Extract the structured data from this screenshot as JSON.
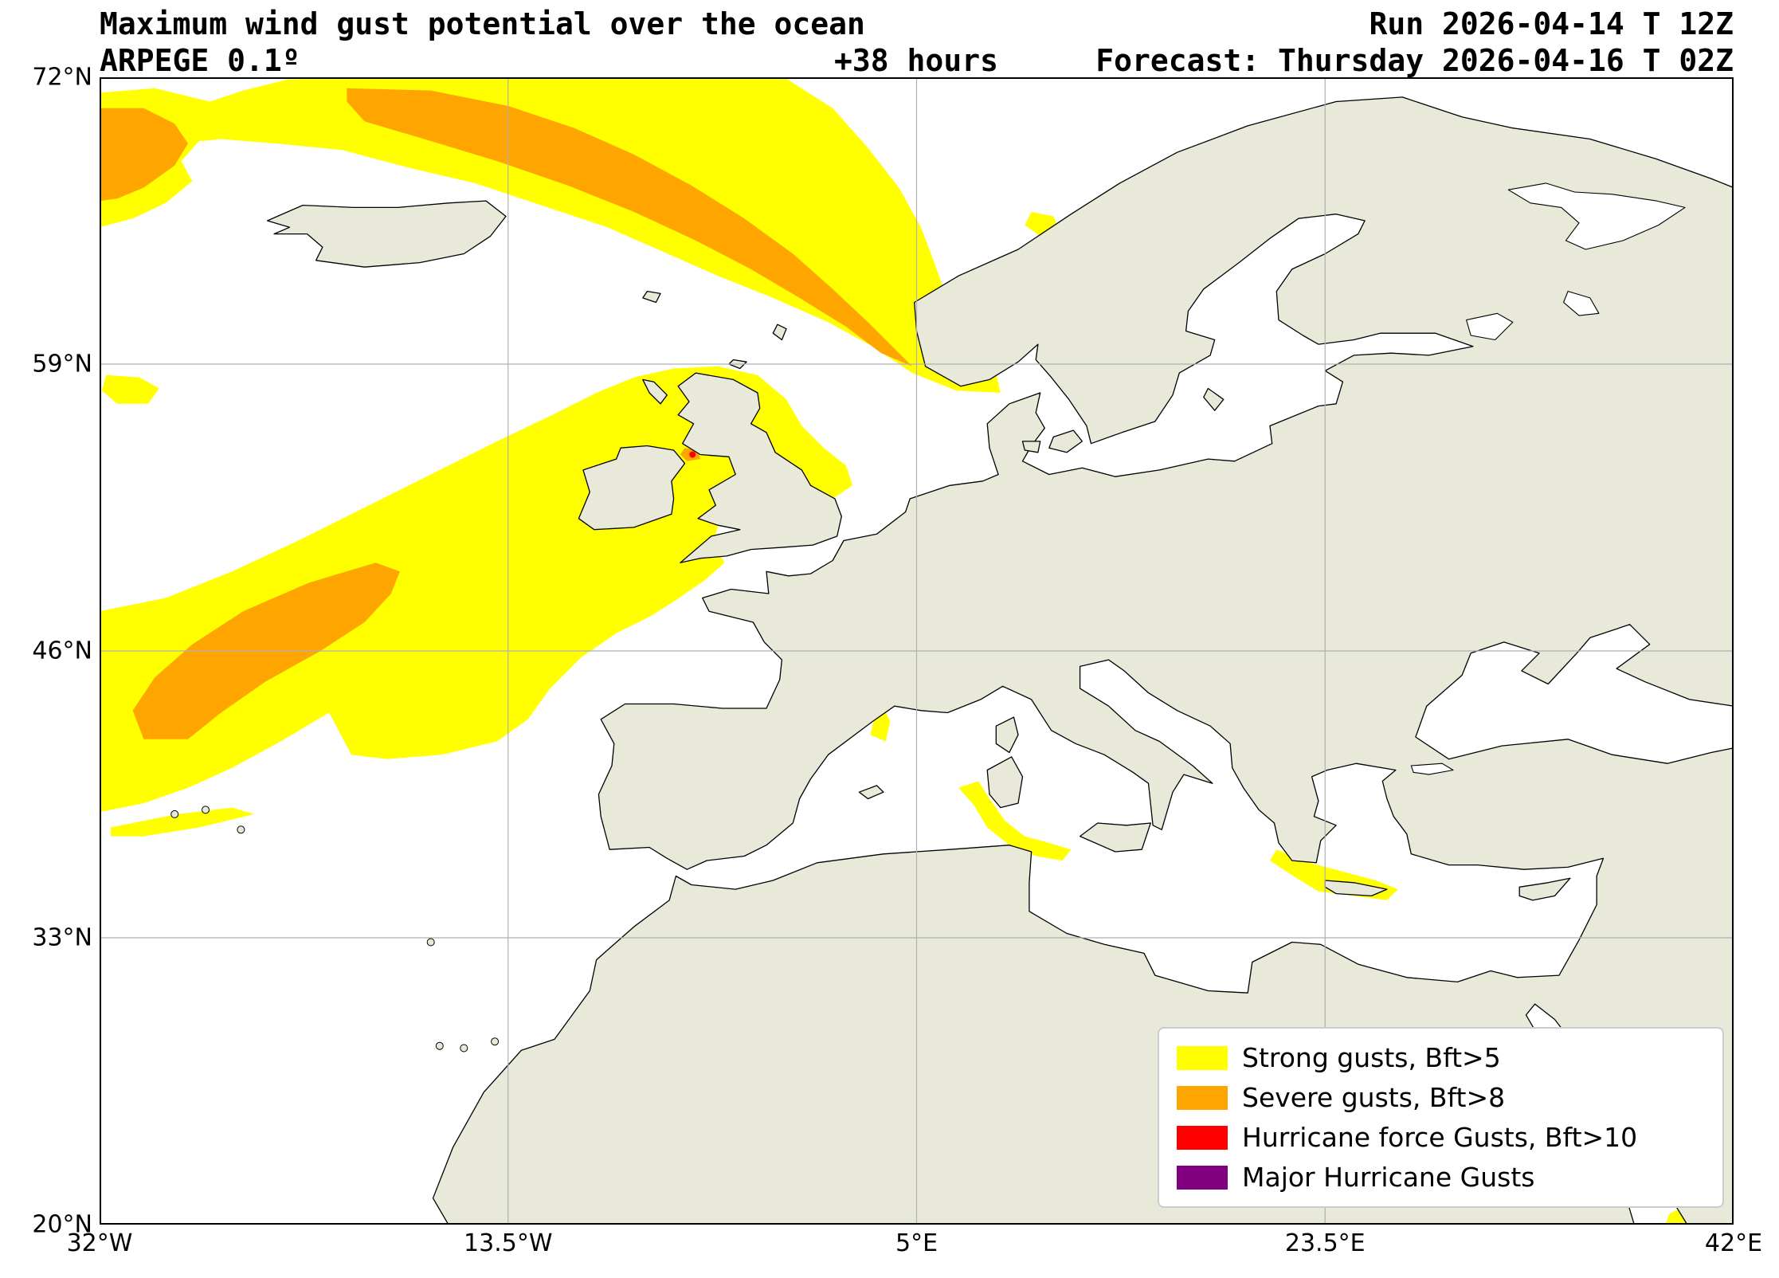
{
  "header": {
    "title": "Maximum wind gust potential over the ocean",
    "model": "ARPEGE 0.1º",
    "lead_time": "+38 hours",
    "run": "Run 2026-04-14 T 12Z",
    "forecast": "Forecast: Thursday 2026-04-16 T 02Z"
  },
  "map": {
    "extent": {
      "lon_min": -32,
      "lon_max": 42,
      "lat_min": 20,
      "lat_max": 72
    },
    "lat_ticks": [
      {
        "label": "72°N",
        "lat": 72
      },
      {
        "label": "59°N",
        "lat": 59
      },
      {
        "label": "46°N",
        "lat": 46
      },
      {
        "label": "33°N",
        "lat": 33
      },
      {
        "label": "20°N",
        "lat": 20
      }
    ],
    "lon_ticks": [
      {
        "label": "32°W",
        "lon": -32
      },
      {
        "label": "13.5°W",
        "lon": -13.5
      },
      {
        "label": "5°E",
        "lon": 5
      },
      {
        "label": "23.5°E",
        "lon": 23.5
      },
      {
        "label": "42°E",
        "lon": 42
      }
    ]
  },
  "legend": {
    "items": [
      {
        "label": "Strong gusts, Bft>5",
        "color": "#ffff00"
      },
      {
        "label": "Severe gusts, Bft>8",
        "color": "#ffa500"
      },
      {
        "label": "Hurricane force Gusts, Bft>10",
        "color": "#ff0000"
      },
      {
        "label": "Major Hurricane Gusts",
        "color": "#800080"
      }
    ]
  },
  "colors": {
    "land": "#e9e9da",
    "ocean": "#ffffff",
    "coastline": "#000000",
    "gridline": "#b0b0b0",
    "frame": "#000000",
    "legend_border": "#cccccc"
  }
}
